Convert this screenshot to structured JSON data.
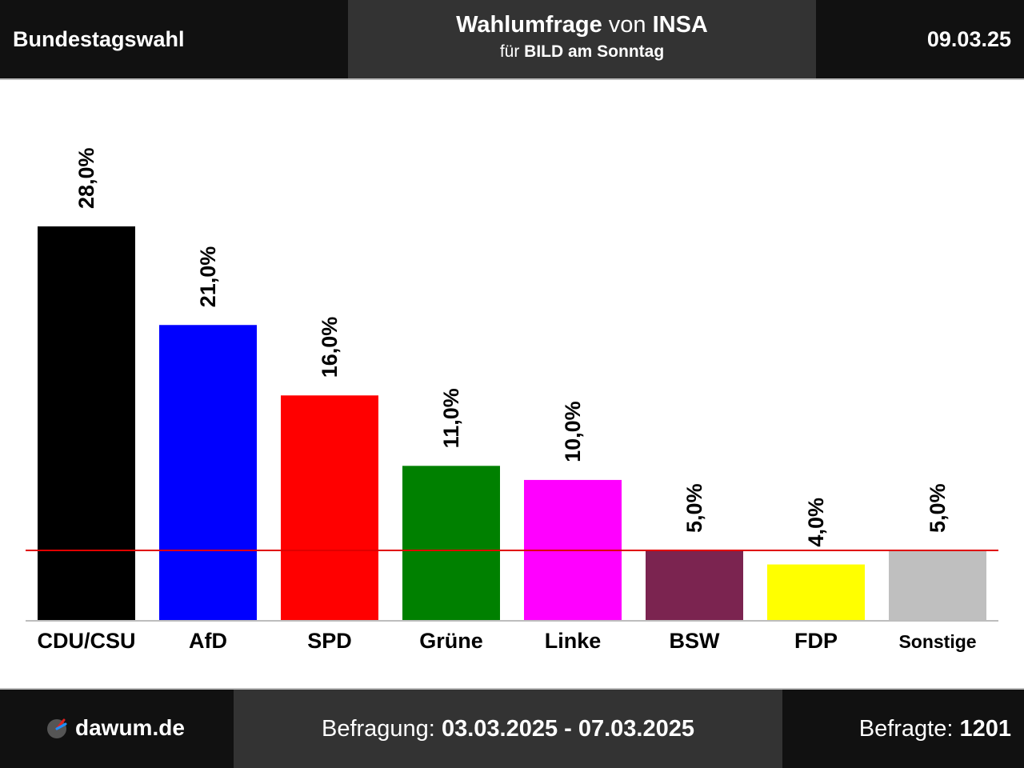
{
  "header": {
    "left": "Bundestagswahl",
    "title_bold1": "Wahlumfrage",
    "title_mid": " von ",
    "title_bold2": "INSA",
    "sub_pre": "für ",
    "sub_bold": "BILD am Sonntag",
    "date": "09.03.25"
  },
  "footer": {
    "logo": "dawum.de",
    "period_label": "Befragung: ",
    "period": "03.03.2025 - 07.03.2025",
    "respondents_label": "Befragte: ",
    "respondents": "1201"
  },
  "chart_data": {
    "type": "bar",
    "categories": [
      "CDU/CSU",
      "AfD",
      "SPD",
      "Grüne",
      "Linke",
      "BSW",
      "FDP",
      "Sonstige"
    ],
    "values": [
      28.0,
      21.0,
      16.0,
      11.0,
      10.0,
      5.0,
      4.0,
      5.0
    ],
    "value_labels": [
      "28,0%",
      "21,0%",
      "16,0%",
      "11,0%",
      "10,0%",
      "5,0%",
      "4,0%",
      "5,0%"
    ],
    "colors": [
      "#000000",
      "#0000ff",
      "#ff0000",
      "#008000",
      "#ff00ff",
      "#7b2450",
      "#ffff00",
      "#bfbfbf"
    ],
    "threshold": 5.0,
    "threshold_color": "#e00000",
    "ylim": [
      0,
      28.0
    ]
  }
}
